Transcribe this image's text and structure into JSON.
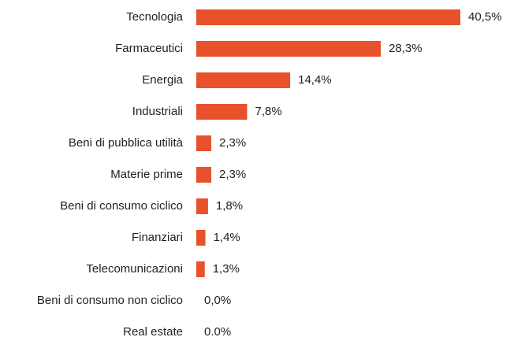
{
  "chart_data": {
    "type": "bar",
    "orientation": "horizontal",
    "categories": [
      "Tecnologia",
      "Farmaceutici",
      "Energia",
      "Industriali",
      "Beni di pubblica utilità",
      "Materie prime",
      "Beni di consumo ciclico",
      "Finanziari",
      "Telecomunicazioni",
      "Beni di consumo non ciclico",
      "Real estate"
    ],
    "values": [
      40.5,
      28.3,
      14.4,
      7.8,
      2.3,
      2.3,
      1.8,
      1.4,
      1.3,
      0.0,
      0.0
    ],
    "value_labels": [
      "40,5%",
      "28,3%",
      "14,4%",
      "7,8%",
      "2,3%",
      "2,3%",
      "1,8%",
      "1,4%",
      "1,3%",
      "0,0%",
      "0.0%"
    ],
    "color": "#e8522b"
  }
}
